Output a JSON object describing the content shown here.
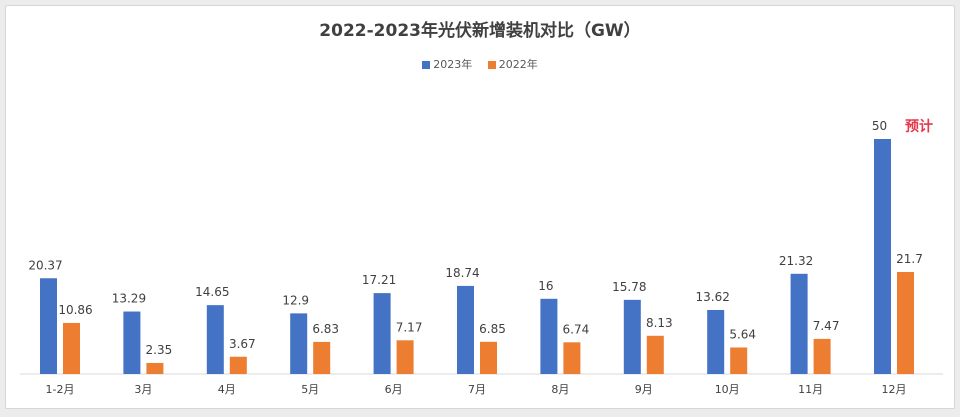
{
  "chart_data": {
    "type": "bar",
    "title": "2022-2023年光伏新增装机对比（GW）",
    "categories": [
      "1-2月",
      "3月",
      "4月",
      "5月",
      "6月",
      "7月",
      "8月",
      "9月",
      "10月",
      "11月",
      "12月"
    ],
    "series": [
      {
        "name": "2023年",
        "color": "#4472c4",
        "values": [
          20.37,
          13.29,
          14.65,
          12.9,
          17.21,
          18.74,
          16,
          15.78,
          13.62,
          21.32,
          50
        ]
      },
      {
        "name": "2022年",
        "color": "#ed7d31",
        "values": [
          10.86,
          2.35,
          3.67,
          6.83,
          7.17,
          6.85,
          6.74,
          8.13,
          5.64,
          7.47,
          21.7
        ]
      }
    ],
    "value_labels": [
      [
        "20.37",
        "13.29",
        "14.65",
        "12.9",
        "17.21",
        "18.74",
        "16",
        "15.78",
        "13.62",
        "21.32",
        "50"
      ],
      [
        "10.86",
        "2.35",
        "3.67",
        "6.83",
        "7.17",
        "6.85",
        "6.74",
        "8.13",
        "5.64",
        "7.47",
        "21.7"
      ]
    ],
    "annotation": "预计",
    "annotation_color": "#e6374b",
    "ylim": [
      0,
      50
    ],
    "legend_position": "top-center",
    "grid": false
  }
}
